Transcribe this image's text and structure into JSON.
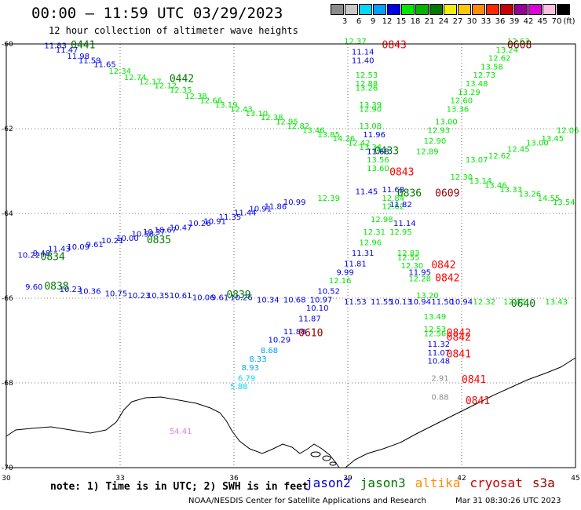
{
  "title": "00:00 – 11:59 UTC 03/29/2023",
  "subtitle": "12 hour collection of altimeter wave heights",
  "colorbar": {
    "unit_label": "(ft)",
    "labels": [
      "3",
      "6",
      "9",
      "12",
      "15",
      "18",
      "21",
      "24",
      "27",
      "30",
      "33",
      "36",
      "39",
      "42",
      "45",
      "70"
    ],
    "colors": [
      "#8c8c8c",
      "#c8c8c8",
      "#00d8ff",
      "#00a0ff",
      "#0000e6",
      "#00e600",
      "#00b400",
      "#007800",
      "#f0f000",
      "#ffc800",
      "#ff8c00",
      "#ff2800",
      "#c80000",
      "#960096",
      "#dc00dc",
      "#ffc0e0",
      "#000000"
    ]
  },
  "axes": {
    "lon_ticks": [
      "30",
      "33",
      "36",
      "39",
      "42",
      "45"
    ],
    "lat_ticks": [
      "-60",
      "-62",
      "-64",
      "-66",
      "-68",
      "-70"
    ],
    "lon_range": [
      30,
      45
    ],
    "lat_range": [
      -70,
      -60
    ]
  },
  "note": "note: 1) Time is in UTC; 2) SWH is in feet",
  "legend": [
    {
      "name": "jason2",
      "color": "#0000dc"
    },
    {
      "name": "jason3",
      "color": "#007800"
    },
    {
      "name": "altika",
      "color": "#ff8c00"
    },
    {
      "name": "cryosat",
      "color": "#c80000"
    },
    {
      "name": "s3a",
      "color": "#960000"
    }
  ],
  "footer": "NOAA/NESDIS Center for Satellite Applications and Research",
  "footer_date": "Mar 31 08:30:26 UTC 2023",
  "pass_labels": [
    {
      "text": "0441",
      "lon": 31.7,
      "lat": -60.1,
      "color": "#007800"
    },
    {
      "text": "0442",
      "lon": 34.3,
      "lat": -60.9,
      "color": "#007800"
    },
    {
      "text": "0843",
      "lon": 39.9,
      "lat": -60.1,
      "color": "#ff0000"
    },
    {
      "text": "0608",
      "lon": 43.2,
      "lat": -60.1,
      "color": "#960000"
    },
    {
      "text": "0433",
      "lon": 39.7,
      "lat": -62.6,
      "color": "#007800"
    },
    {
      "text": "0843",
      "lon": 40.1,
      "lat": -63.1,
      "color": "#ff0000"
    },
    {
      "text": "0836",
      "lon": 40.3,
      "lat": -63.6,
      "color": "#007800"
    },
    {
      "text": "0609",
      "lon": 41.3,
      "lat": -63.6,
      "color": "#960000"
    },
    {
      "text": "0835",
      "lon": 33.7,
      "lat": -64.7,
      "color": "#007800"
    },
    {
      "text": "0834",
      "lon": 30.9,
      "lat": -65.1,
      "color": "#007800"
    },
    {
      "text": "0842",
      "lon": 41.2,
      "lat": -65.3,
      "color": "#ff0000"
    },
    {
      "text": "0842",
      "lon": 41.3,
      "lat": -65.6,
      "color": "#ff0000"
    },
    {
      "text": "0838",
      "lon": 31.0,
      "lat": -65.8,
      "color": "#007800"
    },
    {
      "text": "0839",
      "lon": 35.8,
      "lat": -66.0,
      "color": "#007800"
    },
    {
      "text": "0640",
      "lon": 43.3,
      "lat": -66.2,
      "color": "#007800"
    },
    {
      "text": "0610",
      "lon": 37.7,
      "lat": -66.9,
      "color": "#960000"
    },
    {
      "text": "0842",
      "lon": 41.6,
      "lat": -66.9,
      "color": "#ff0000"
    },
    {
      "text": "0842",
      "lon": 41.6,
      "lat": -67.0,
      "color": "#ff0000"
    },
    {
      "text": "0841",
      "lon": 41.6,
      "lat": -67.4,
      "color": "#ff0000"
    },
    {
      "text": "0841",
      "lon": 42.0,
      "lat": -68.0,
      "color": "#ff0000"
    },
    {
      "text": "0841",
      "lon": 42.1,
      "lat": -68.5,
      "color": "#ff0000"
    }
  ],
  "observations": [
    {
      "v": "11.83",
      "lon": 31.0,
      "lat": -60.1,
      "c": "#0000e6"
    },
    {
      "v": "11.47",
      "lon": 31.3,
      "lat": -60.2,
      "c": "#0000e6"
    },
    {
      "v": "11.98",
      "lon": 31.6,
      "lat": -60.35,
      "c": "#0000e6"
    },
    {
      "v": "11.59",
      "lon": 31.9,
      "lat": -60.45,
      "c": "#0000e6"
    },
    {
      "v": "11.65",
      "lon": 32.3,
      "lat": -60.55,
      "c": "#0000e6"
    },
    {
      "v": "12.34",
      "lon": 32.7,
      "lat": -60.7,
      "c": "#00e600"
    },
    {
      "v": "12.74",
      "lon": 33.1,
      "lat": -60.85,
      "c": "#00e600"
    },
    {
      "v": "12.17",
      "lon": 33.5,
      "lat": -60.95,
      "c": "#00e600"
    },
    {
      "v": "12.12",
      "lon": 33.9,
      "lat": -61.05,
      "c": "#00e600"
    },
    {
      "v": "12.35",
      "lon": 34.3,
      "lat": -61.15,
      "c": "#00e600"
    },
    {
      "v": "12.38",
      "lon": 34.7,
      "lat": -61.3,
      "c": "#00e600"
    },
    {
      "v": "12.66",
      "lon": 35.1,
      "lat": -61.4,
      "c": "#00e600"
    },
    {
      "v": "13.19",
      "lon": 35.5,
      "lat": -61.5,
      "c": "#00e600"
    },
    {
      "v": "12.43",
      "lon": 35.9,
      "lat": -61.6,
      "c": "#00e600"
    },
    {
      "v": "13.10",
      "lon": 36.3,
      "lat": -61.7,
      "c": "#00e600"
    },
    {
      "v": "12.38",
      "lon": 36.7,
      "lat": -61.8,
      "c": "#00e600"
    },
    {
      "v": "12.95",
      "lon": 37.1,
      "lat": -61.9,
      "c": "#00e600"
    },
    {
      "v": "12.82",
      "lon": 37.4,
      "lat": -62.0,
      "c": "#00e600"
    },
    {
      "v": "13.46",
      "lon": 37.8,
      "lat": -62.1,
      "c": "#00e600"
    },
    {
      "v": "13.85",
      "lon": 38.2,
      "lat": -62.2,
      "c": "#00e600"
    },
    {
      "v": "14.26",
      "lon": 38.6,
      "lat": -62.3,
      "c": "#00e600"
    },
    {
      "v": "12.42",
      "lon": 39.0,
      "lat": -62.4,
      "c": "#00e600"
    },
    {
      "v": "13.34",
      "lon": 39.3,
      "lat": -62.5,
      "c": "#00e600"
    },
    {
      "v": "12.37",
      "lon": 38.9,
      "lat": -60.0,
      "c": "#00e600"
    },
    {
      "v": "11.14",
      "lon": 39.1,
      "lat": -60.25,
      "c": "#0000e6"
    },
    {
      "v": "11.40",
      "lon": 39.1,
      "lat": -60.45,
      "c": "#0000e6"
    },
    {
      "v": "12.53",
      "lon": 39.2,
      "lat": -60.8,
      "c": "#00e600"
    },
    {
      "v": "12.88",
      "lon": 39.2,
      "lat": -61.0,
      "c": "#00e600"
    },
    {
      "v": "13.26",
      "lon": 39.2,
      "lat": -61.1,
      "c": "#00e600"
    },
    {
      "v": "13.39",
      "lon": 39.3,
      "lat": -61.5,
      "c": "#00e600"
    },
    {
      "v": "12.90",
      "lon": 39.3,
      "lat": -61.6,
      "c": "#00e600"
    },
    {
      "v": "13.08",
      "lon": 39.3,
      "lat": -62.0,
      "c": "#00e600"
    },
    {
      "v": "11.96",
      "lon": 39.4,
      "lat": -62.2,
      "c": "#0000e6"
    },
    {
      "v": "11.68",
      "lon": 39.5,
      "lat": -62.6,
      "c": "#0000e6"
    },
    {
      "v": "13.56",
      "lon": 39.5,
      "lat": -62.8,
      "c": "#00e600"
    },
    {
      "v": "13.60",
      "lon": 39.5,
      "lat": -63.0,
      "c": "#00e600"
    },
    {
      "v": "12.63",
      "lon": 43.2,
      "lat": -60.0,
      "c": "#00e600"
    },
    {
      "v": "13.24",
      "lon": 42.9,
      "lat": -60.2,
      "c": "#00e600"
    },
    {
      "v": "12.62",
      "lon": 42.7,
      "lat": -60.4,
      "c": "#00e600"
    },
    {
      "v": "13.58",
      "lon": 42.5,
      "lat": -60.6,
      "c": "#00e600"
    },
    {
      "v": "12.73",
      "lon": 42.3,
      "lat": -60.8,
      "c": "#00e600"
    },
    {
      "v": "13.48",
      "lon": 42.1,
      "lat": -61.0,
      "c": "#00e600"
    },
    {
      "v": "13.29",
      "lon": 41.9,
      "lat": -61.2,
      "c": "#00e600"
    },
    {
      "v": "12.60",
      "lon": 41.7,
      "lat": -61.4,
      "c": "#00e600"
    },
    {
      "v": "13.36",
      "lon": 41.6,
      "lat": -61.6,
      "c": "#00e600"
    },
    {
      "v": "13.00",
      "lon": 41.3,
      "lat": -61.9,
      "c": "#00e600"
    },
    {
      "v": "12.93",
      "lon": 41.1,
      "lat": -62.1,
      "c": "#00e600"
    },
    {
      "v": "12.90",
      "lon": 41.0,
      "lat": -62.35,
      "c": "#00e600"
    },
    {
      "v": "12.89",
      "lon": 40.8,
      "lat": -62.6,
      "c": "#00e600"
    },
    {
      "v": "12.06",
      "lon": 44.5,
      "lat": -62.1,
      "c": "#00e600"
    },
    {
      "v": "13.45",
      "lon": 44.1,
      "lat": -62.3,
      "c": "#00e600"
    },
    {
      "v": "13.00",
      "lon": 43.7,
      "lat": -62.4,
      "c": "#00e600"
    },
    {
      "v": "12.45",
      "lon": 43.2,
      "lat": -62.55,
      "c": "#00e600"
    },
    {
      "v": "12.62",
      "lon": 42.7,
      "lat": -62.7,
      "c": "#00e600"
    },
    {
      "v": "13.07",
      "lon": 42.1,
      "lat": -62.8,
      "c": "#00e600"
    },
    {
      "v": "13.14",
      "lon": 42.2,
      "lat": -63.3,
      "c": "#00e600"
    },
    {
      "v": "13.46",
      "lon": 42.6,
      "lat": -63.4,
      "c": "#00e600"
    },
    {
      "v": "13.33",
      "lon": 43.0,
      "lat": -63.5,
      "c": "#00e600"
    },
    {
      "v": "13.26",
      "lon": 43.5,
      "lat": -63.6,
      "c": "#00e600"
    },
    {
      "v": "14.55",
      "lon": 44.0,
      "lat": -63.7,
      "c": "#00e600"
    },
    {
      "v": "13.54",
      "lon": 44.4,
      "lat": -63.8,
      "c": "#00e600"
    },
    {
      "v": "12.30",
      "lon": 41.7,
      "lat": -63.2,
      "c": "#00e600"
    },
    {
      "v": "12.39",
      "lon": 38.2,
      "lat": -63.7,
      "c": "#00e600"
    },
    {
      "v": "11.45",
      "lon": 39.2,
      "lat": -63.55,
      "c": "#0000e6"
    },
    {
      "v": "11.68",
      "lon": 39.9,
      "lat": -63.5,
      "c": "#0000e6"
    },
    {
      "v": "12.84",
      "lon": 39.9,
      "lat": -63.7,
      "c": "#00e600"
    },
    {
      "v": "12.62",
      "lon": 39.9,
      "lat": -63.9,
      "c": "#00e600"
    },
    {
      "v": "11.82",
      "lon": 40.1,
      "lat": -63.85,
      "c": "#0000e6"
    },
    {
      "v": "10.99",
      "lon": 37.3,
      "lat": -63.8,
      "c": "#0000e6"
    },
    {
      "v": "11.86",
      "lon": 36.8,
      "lat": -63.9,
      "c": "#0000e6"
    },
    {
      "v": "10.91",
      "lon": 36.4,
      "lat": -63.95,
      "c": "#0000e6"
    },
    {
      "v": "11.44",
      "lon": 36.0,
      "lat": -64.05,
      "c": "#0000e6"
    },
    {
      "v": "11.35",
      "lon": 35.6,
      "lat": -64.15,
      "c": "#0000e6"
    },
    {
      "v": "10.91",
      "lon": 35.2,
      "lat": -64.25,
      "c": "#0000e6"
    },
    {
      "v": "10.26",
      "lon": 34.8,
      "lat": -64.3,
      "c": "#0000e6"
    },
    {
      "v": "10.47",
      "lon": 34.3,
      "lat": -64.4,
      "c": "#0000e6"
    },
    {
      "v": "10.67",
      "lon": 33.9,
      "lat": -64.45,
      "c": "#0000e6"
    },
    {
      "v": "10.37",
      "lon": 33.6,
      "lat": -64.5,
      "c": "#0000e6"
    },
    {
      "v": "10.58",
      "lon": 33.3,
      "lat": -64.55,
      "c": "#0000e6"
    },
    {
      "v": "10.00",
      "lon": 32.9,
      "lat": -64.65,
      "c": "#0000e6"
    },
    {
      "v": "10.21",
      "lon": 32.5,
      "lat": -64.7,
      "c": "#0000e6"
    },
    {
      "v": "9.61",
      "lon": 32.1,
      "lat": -64.8,
      "c": "#0000e6"
    },
    {
      "v": "10.09",
      "lon": 31.6,
      "lat": -64.85,
      "c": "#0000e6"
    },
    {
      "v": "11.43",
      "lon": 31.1,
      "lat": -64.9,
      "c": "#0000e6"
    },
    {
      "v": "9.48",
      "lon": 30.7,
      "lat": -65.0,
      "c": "#0000e6"
    },
    {
      "v": "10.22",
      "lon": 30.3,
      "lat": -65.05,
      "c": "#0000e6"
    },
    {
      "v": "12.98",
      "lon": 39.6,
      "lat": -64.2,
      "c": "#00e600"
    },
    {
      "v": "11.14",
      "lon": 40.2,
      "lat": -64.3,
      "c": "#0000e6"
    },
    {
      "v": "12.31",
      "lon": 39.4,
      "lat": -64.5,
      "c": "#00e600"
    },
    {
      "v": "12.95",
      "lon": 40.1,
      "lat": -64.5,
      "c": "#00e600"
    },
    {
      "v": "12.96",
      "lon": 39.3,
      "lat": -64.75,
      "c": "#00e600"
    },
    {
      "v": "11.31",
      "lon": 39.1,
      "lat": -65.0,
      "c": "#0000e6"
    },
    {
      "v": "12.83",
      "lon": 40.3,
      "lat": -65.0,
      "c": "#00e600"
    },
    {
      "v": "12.55",
      "lon": 40.3,
      "lat": -65.1,
      "c": "#00e600"
    },
    {
      "v": "11.81",
      "lon": 38.9,
      "lat": -65.25,
      "c": "#0000e6"
    },
    {
      "v": "12.30",
      "lon": 40.4,
      "lat": -65.3,
      "c": "#00e600"
    },
    {
      "v": "9.99",
      "lon": 38.7,
      "lat": -65.45,
      "c": "#0000e6"
    },
    {
      "v": "11.95",
      "lon": 40.6,
      "lat": -65.45,
      "c": "#0000e6"
    },
    {
      "v": "12.28",
      "lon": 40.6,
      "lat": -65.6,
      "c": "#00e600"
    },
    {
      "v": "12.16",
      "lon": 38.5,
      "lat": -65.65,
      "c": "#00e600"
    },
    {
      "v": "10.52",
      "lon": 38.2,
      "lat": -65.9,
      "c": "#0000e6"
    },
    {
      "v": "9.60",
      "lon": 30.5,
      "lat": -65.8,
      "c": "#0000e6"
    },
    {
      "v": "10.23",
      "lon": 31.4,
      "lat": -65.85,
      "c": "#0000e6"
    },
    {
      "v": "10.36",
      "lon": 31.9,
      "lat": -65.9,
      "c": "#0000e6"
    },
    {
      "v": "10.75",
      "lon": 32.6,
      "lat": -65.95,
      "c": "#0000e6"
    },
    {
      "v": "10.23",
      "lon": 33.2,
      "lat": -66.0,
      "c": "#0000e6"
    },
    {
      "v": "10.35",
      "lon": 33.7,
      "lat": -66.0,
      "c": "#0000e6"
    },
    {
      "v": "10.61",
      "lon": 34.3,
      "lat": -66.0,
      "c": "#0000e6"
    },
    {
      "v": "10.06",
      "lon": 34.9,
      "lat": -66.05,
      "c": "#0000e6"
    },
    {
      "v": "9.61",
      "lon": 35.4,
      "lat": -66.05,
      "c": "#0000e6"
    },
    {
      "v": "10.26",
      "lon": 35.9,
      "lat": -66.05,
      "c": "#0000e6"
    },
    {
      "v": "10.34",
      "lon": 36.6,
      "lat": -66.1,
      "c": "#0000e6"
    },
    {
      "v": "10.68",
      "lon": 37.3,
      "lat": -66.1,
      "c": "#0000e6"
    },
    {
      "v": "10.97",
      "lon": 38.0,
      "lat": -66.1,
      "c": "#0000e6"
    },
    {
      "v": "11.53",
      "lon": 38.9,
      "lat": -66.15,
      "c": "#0000e6"
    },
    {
      "v": "11.55",
      "lon": 39.6,
      "lat": -66.15,
      "c": "#0000e6"
    },
    {
      "v": "10.13",
      "lon": 40.1,
      "lat": -66.15,
      "c": "#0000e6"
    },
    {
      "v": "10.94",
      "lon": 40.6,
      "lat": -66.15,
      "c": "#0000e6"
    },
    {
      "v": "11.50",
      "lon": 41.2,
      "lat": -66.15,
      "c": "#0000e6"
    },
    {
      "v": "10.94",
      "lon": 41.7,
      "lat": -66.15,
      "c": "#0000e6"
    },
    {
      "v": "12.32",
      "lon": 42.3,
      "lat": -66.15,
      "c": "#00e600"
    },
    {
      "v": "12.35",
      "lon": 43.1,
      "lat": -66.15,
      "c": "#00e600"
    },
    {
      "v": "13.43",
      "lon": 44.2,
      "lat": -66.15,
      "c": "#00e600"
    },
    {
      "v": "13.20",
      "lon": 40.8,
      "lat": -66.0,
      "c": "#00e600"
    },
    {
      "v": "10.10",
      "lon": 37.9,
      "lat": -66.3,
      "c": "#0000e6"
    },
    {
      "v": "11.87",
      "lon": 37.7,
      "lat": -66.55,
      "c": "#0000e6"
    },
    {
      "v": "11.88",
      "lon": 37.3,
      "lat": -66.85,
      "c": "#0000e6"
    },
    {
      "v": "10.29",
      "lon": 36.9,
      "lat": -67.05,
      "c": "#0000e6"
    },
    {
      "v": "8.68",
      "lon": 36.7,
      "lat": -67.3,
      "c": "#00a0ff"
    },
    {
      "v": "8.33",
      "lon": 36.4,
      "lat": -67.5,
      "c": "#00a0ff"
    },
    {
      "v": "8.93",
      "lon": 36.2,
      "lat": -67.7,
      "c": "#00a0ff"
    },
    {
      "v": "6.79",
      "lon": 36.1,
      "lat": -67.95,
      "c": "#00d8ff"
    },
    {
      "v": "5.88",
      "lon": 35.9,
      "lat": -68.15,
      "c": "#00d8ff"
    },
    {
      "v": "13.49",
      "lon": 41.0,
      "lat": -66.5,
      "c": "#00e600"
    },
    {
      "v": "12.53",
      "lon": 41.0,
      "lat": -66.8,
      "c": "#00e600"
    },
    {
      "v": "12.56",
      "lon": 41.0,
      "lat": -66.9,
      "c": "#00e600"
    },
    {
      "v": "11.32",
      "lon": 41.1,
      "lat": -67.15,
      "c": "#0000e6"
    },
    {
      "v": "11.07",
      "lon": 41.1,
      "lat": -67.35,
      "c": "#0000e6"
    },
    {
      "v": "10.48",
      "lon": 41.1,
      "lat": -67.55,
      "c": "#0000e6"
    },
    {
      "v": "2.91",
      "lon": 41.2,
      "lat": -67.95,
      "c": "#8c8c8c"
    },
    {
      "v": "0.88",
      "lon": 41.2,
      "lat": -68.4,
      "c": "#8c8c8c"
    },
    {
      "v": "54.41",
      "lon": 34.3,
      "lat": -69.2,
      "c": "#e080e0"
    }
  ]
}
